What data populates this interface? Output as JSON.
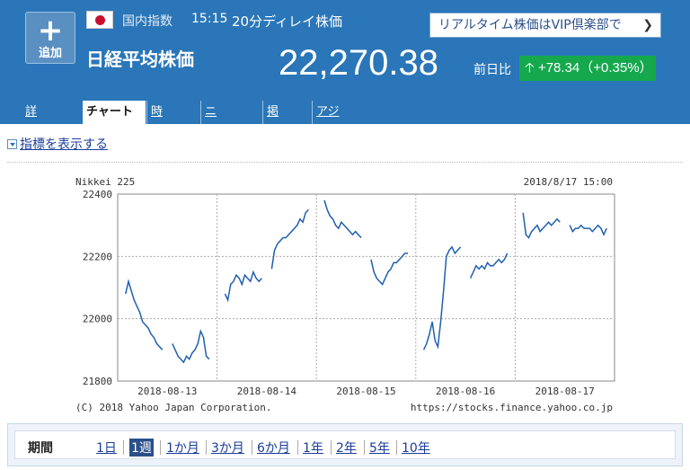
{
  "header": {
    "add_label": "追加",
    "category": "国内指数",
    "time": "15:15",
    "delay_note": "20分ディレイ株価",
    "vip_link": "リアルタイム株価はVIP倶楽部で",
    "name": "日経平均株価",
    "price": "22,270.38",
    "change_label": "前日比",
    "change": "+78.34（+0.35%）"
  },
  "tabs": [
    "詳細情報",
    "チャート",
    "時系列",
    "ニュース",
    "掲示板",
    "アジア・オセアニアの指数"
  ],
  "indicator_link": "指標を表示する",
  "period": {
    "label": "期間",
    "options": [
      "1日",
      "1週",
      "1か月",
      "3か月",
      "6か月",
      "1年",
      "2年",
      "5年",
      "10年"
    ],
    "selected": "1週"
  },
  "colors": {
    "header": "#2a76b8",
    "up": "#15a84d",
    "line": "#1f5fb0"
  },
  "chart_data": {
    "type": "line",
    "title": "Nikkei 225",
    "timestamp": "2018/8/17 15:00",
    "copyright": "(C) 2018 Yahoo Japan Corporation.",
    "source": "https://stocks.finance.yahoo.co.jp",
    "x_labels": [
      "2018-08-13",
      "2018-08-14",
      "2018-08-15",
      "2018-08-16",
      "2018-08-17"
    ],
    "y_ticks": [
      21800,
      22000,
      22200,
      22400
    ],
    "ylim": [
      21800,
      22400
    ],
    "grid": true,
    "series": [
      {
        "sessions": [
          [
            22080,
            22120,
            22090,
            22060,
            22040,
            22020,
            21990,
            21980,
            21970,
            21950,
            21940,
            21920,
            21910,
            21900
          ],
          [
            21920,
            21900,
            21880,
            21870,
            21860,
            21880,
            21870,
            21890,
            21900,
            21920,
            21960,
            21940,
            21880,
            21870
          ],
          [
            22080,
            22060,
            22110,
            22120,
            22140,
            22130,
            22110,
            22140,
            22130,
            22120,
            22150,
            22130,
            22120,
            22130
          ],
          [
            22160,
            22220,
            22240,
            22250,
            22260,
            22260,
            22270,
            22280,
            22290,
            22300,
            22320,
            22310,
            22340,
            22350
          ],
          [
            22380,
            22350,
            22330,
            22320,
            22300,
            22290,
            22310,
            22300,
            22290,
            22280,
            22270,
            22280,
            22270,
            22260
          ],
          [
            22190,
            22150,
            22130,
            22120,
            22110,
            22130,
            22150,
            22160,
            22180,
            22180,
            22190,
            22200,
            22210,
            22210
          ],
          [
            21900,
            21920,
            21950,
            21990,
            21930,
            21910,
            21990,
            22090,
            22200,
            22220,
            22230,
            22210,
            22220,
            22230
          ],
          [
            22130,
            22150,
            22170,
            22160,
            22170,
            22160,
            22180,
            22170,
            22170,
            22180,
            22190,
            22180,
            22190,
            22210
          ],
          [
            22340,
            22270,
            22260,
            22280,
            22290,
            22300,
            22280,
            22290,
            22300,
            22310,
            22300,
            22310,
            22320,
            22310
          ],
          [
            22300,
            22280,
            22290,
            22290,
            22300,
            22290,
            22290,
            22290,
            22280,
            22290,
            22300,
            22290,
            22270,
            22290
          ]
        ]
      }
    ]
  }
}
